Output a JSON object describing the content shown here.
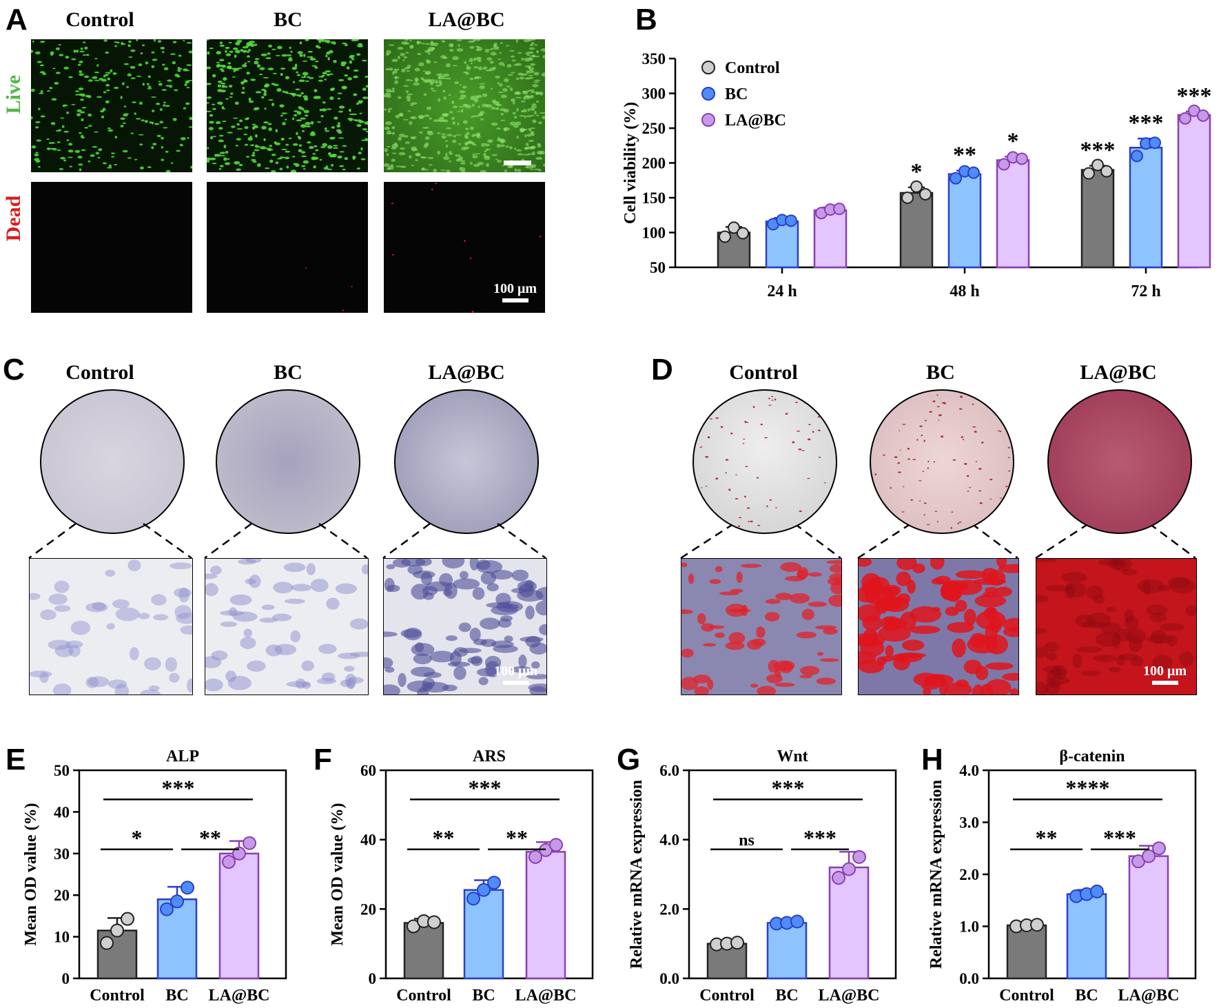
{
  "panel_letters": {
    "A": "A",
    "B": "B",
    "C": "C",
    "D": "D",
    "E": "E",
    "F": "F",
    "G": "G",
    "H": "H"
  },
  "groups": [
    "Control",
    "BC",
    "LA@BC"
  ],
  "row_labels": {
    "live": "Live",
    "dead": "Dead"
  },
  "scale_bar_label": "100 μm",
  "colors": {
    "control": "#7a7a7a",
    "bc": "#8dc4ff",
    "la_bc": "#e3c5ff",
    "bc_edge": "#2a3fc9",
    "la_edge": "#8a3fb3",
    "live": "#52b848",
    "dead": "#d81e1e"
  },
  "chart_data": [
    {
      "id": "B",
      "type": "bar",
      "categories": [
        "24 h",
        "48 h",
        "72 h"
      ],
      "series": [
        {
          "name": "Control",
          "values": [
            100,
            157,
            190
          ],
          "err": [
            8,
            8,
            6
          ],
          "points": [
            [
              94,
              107,
              99
            ],
            [
              150,
              166,
              155
            ],
            [
              185,
              197,
              188
            ]
          ]
        },
        {
          "name": "BC",
          "values": [
            116,
            184,
            222
          ],
          "err": [
            5,
            5,
            13
          ],
          "points": [
            [
              112,
              118,
              117
            ],
            [
              178,
              188,
              186
            ],
            [
              210,
              228,
              229
            ]
          ]
        },
        {
          "name": "LA@BC",
          "values": [
            132,
            204,
            269
          ],
          "err": [
            4,
            5,
            5
          ],
          "points": [
            [
              128,
              133,
              134
            ],
            [
              198,
              208,
              206
            ],
            [
              264,
              275,
              268
            ]
          ]
        }
      ],
      "signif": [
        [
          "",
          "*",
          "***"
        ],
        [
          "",
          "**",
          "***"
        ],
        [
          "",
          "*",
          "***"
        ]
      ],
      "ylabel": "Cell viability (%)",
      "ylim": [
        50,
        350
      ],
      "yticks": [
        50,
        100,
        150,
        200,
        250,
        300,
        350
      ],
      "legend": "top-left"
    },
    {
      "id": "E",
      "type": "bar",
      "title": "ALP",
      "categories": [
        "Control",
        "BC",
        "LA@BC"
      ],
      "values": [
        11.5,
        19,
        30
      ],
      "err": [
        3,
        3,
        3
      ],
      "points": [
        [
          8.5,
          11.5,
          14.3
        ],
        [
          16.6,
          18.5,
          21.8
        ],
        [
          28,
          30,
          32.5
        ]
      ],
      "ylabel": "Mean OD value (%)",
      "ylim": [
        0,
        50
      ],
      "yticks": [
        0,
        10,
        20,
        30,
        40,
        50
      ],
      "ytick_labels": [
        "0",
        "10",
        "20",
        "30",
        "40",
        "50"
      ],
      "comparisons": [
        {
          "from": 0,
          "to": 1,
          "label": "*"
        },
        {
          "from": 1,
          "to": 2,
          "label": "**"
        },
        {
          "from": 0,
          "to": 2,
          "label": "***"
        }
      ]
    },
    {
      "id": "F",
      "type": "bar",
      "title": "ARS",
      "categories": [
        "Control",
        "BC",
        "LA@BC"
      ],
      "values": [
        16,
        25.5,
        36.5
      ],
      "err": [
        1.2,
        2.8,
        2.8
      ],
      "points": [
        [
          15,
          16.5,
          16.2
        ],
        [
          23,
          25.5,
          27.6
        ],
        [
          35,
          37,
          38.5
        ]
      ],
      "ylabel": "Mean OD value (%)",
      "ylim": [
        0,
        60
      ],
      "yticks": [
        0,
        20,
        40,
        60
      ],
      "ytick_labels": [
        "0",
        "20",
        "40",
        "60"
      ],
      "comparisons": [
        {
          "from": 0,
          "to": 1,
          "label": "**"
        },
        {
          "from": 1,
          "to": 2,
          "label": "**"
        },
        {
          "from": 0,
          "to": 2,
          "label": "***"
        }
      ]
    },
    {
      "id": "G",
      "type": "bar",
      "title": "Wnt",
      "categories": [
        "Control",
        "BC",
        "LA@BC"
      ],
      "values": [
        1.0,
        1.6,
        3.2
      ],
      "err": [
        0.05,
        0.1,
        0.45
      ],
      "points": [
        [
          0.98,
          1.0,
          1.03
        ],
        [
          1.58,
          1.6,
          1.64
        ],
        [
          2.9,
          3.15,
          3.5
        ]
      ],
      "ylabel": "Relative mRNA expression",
      "ylim": [
        0,
        6
      ],
      "yticks": [
        0,
        2,
        4,
        6
      ],
      "ytick_labels": [
        "0.0",
        "2.0",
        "4.0",
        "6.0"
      ],
      "comparisons": [
        {
          "from": 0,
          "to": 1,
          "label": "ns"
        },
        {
          "from": 1,
          "to": 2,
          "label": "***"
        },
        {
          "from": 0,
          "to": 2,
          "label": "***"
        }
      ]
    },
    {
      "id": "H",
      "type": "bar",
      "title": "β-catenin",
      "categories": [
        "Control",
        "BC",
        "LA@BC"
      ],
      "values": [
        1.02,
        1.62,
        2.35
      ],
      "err": [
        0.03,
        0.08,
        0.2
      ],
      "points": [
        [
          1.0,
          1.02,
          1.03
        ],
        [
          1.58,
          1.62,
          1.67
        ],
        [
          2.25,
          2.35,
          2.5
        ]
      ],
      "ylabel": "Relative mRNA expression",
      "ylim": [
        0,
        4
      ],
      "yticks": [
        0,
        1,
        2,
        3,
        4
      ],
      "ytick_labels": [
        "0.0",
        "1.0",
        "2.0",
        "3.0",
        "4.0"
      ],
      "comparisons": [
        {
          "from": 0,
          "to": 1,
          "label": "**"
        },
        {
          "from": 1,
          "to": 2,
          "label": "***"
        },
        {
          "from": 0,
          "to": 2,
          "label": "****"
        }
      ]
    }
  ]
}
